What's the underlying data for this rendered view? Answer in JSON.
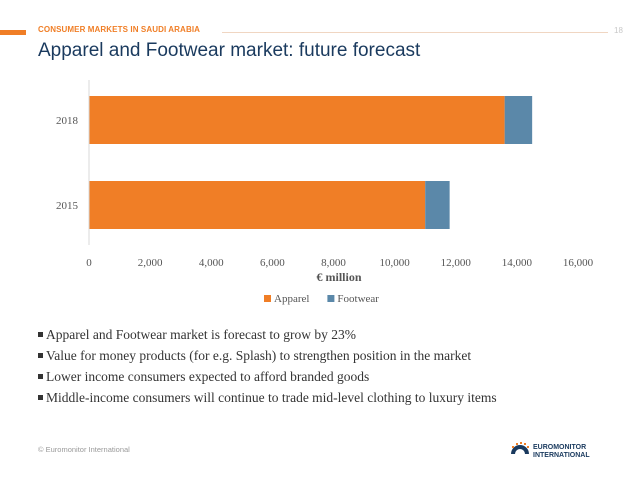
{
  "header": {
    "section": "CONSUMER MARKETS IN SAUDI ARABIA",
    "page_number": "18",
    "title": "Apparel and Footwear market: future forecast"
  },
  "chart_data": {
    "type": "bar",
    "orientation": "horizontal",
    "stacked": true,
    "categories": [
      "2018",
      "2015"
    ],
    "series": [
      {
        "name": "Apparel",
        "values": [
          13600,
          11000
        ],
        "color": "#f07e26"
      },
      {
        "name": "Footwear",
        "values": [
          900,
          800
        ],
        "color": "#5b88a9"
      }
    ],
    "xlabel": "€ million",
    "ylabel": "",
    "xlim": [
      0,
      16000
    ],
    "x_ticks": [
      "0",
      "2,000",
      "4,000",
      "6,000",
      "8,000",
      "10,000",
      "12,000",
      "14,000",
      "16,000"
    ],
    "x_tick_values": [
      0,
      2000,
      4000,
      6000,
      8000,
      10000,
      12000,
      14000,
      16000
    ],
    "grid": false,
    "legend_position": "bottom"
  },
  "bullets": [
    "Apparel and Footwear market is forecast to grow by 23%",
    "Value for money products (for e.g. Splash) to strengthen position in the market",
    "Lower income consumers expected to afford branded goods",
    "Middle-income consumers will continue to trade mid-level clothing to luxury items"
  ],
  "footer": {
    "copyright": "© Euromonitor International",
    "logo_line1": "EUROMONITOR",
    "logo_line2": "INTERNATIONAL"
  }
}
